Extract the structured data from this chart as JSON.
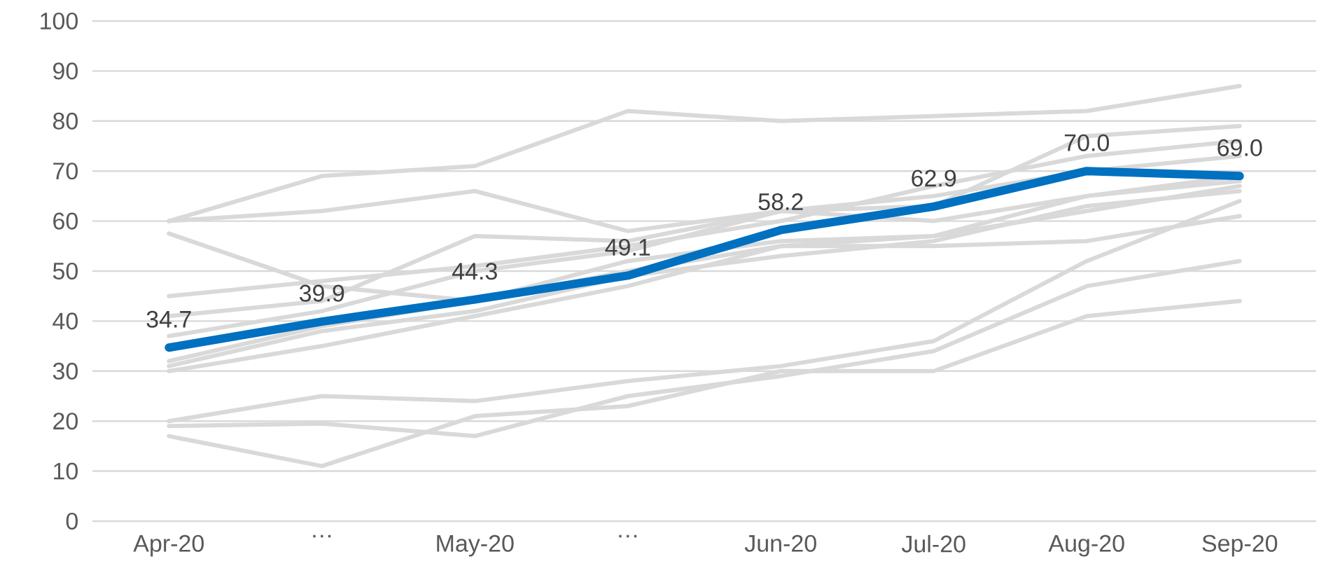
{
  "chart_data": {
    "type": "line",
    "categories": [
      "Apr-20",
      "…",
      "May-20",
      "…",
      "Jun-20",
      "Jul-20",
      "Aug-20",
      "Sep-20"
    ],
    "ylim": [
      0,
      100
    ],
    "yticks": [
      0,
      10,
      20,
      30,
      40,
      50,
      60,
      70,
      80,
      90,
      100
    ],
    "grid": "y",
    "marker": "none",
    "line_style": "solid",
    "series": [
      {
        "color": "#d9d9d9",
        "values": [
          60,
          69,
          71,
          82,
          80,
          81,
          82,
          87
        ]
      },
      {
        "color": "#d9d9d9",
        "values": [
          60,
          62,
          66,
          58,
          62,
          63,
          77,
          79
        ]
      },
      {
        "color": "#d9d9d9",
        "values": [
          57.5,
          47,
          44,
          50,
          55,
          57,
          62,
          67
        ]
      },
      {
        "color": "#d9d9d9",
        "values": [
          45,
          48,
          51,
          55,
          60,
          67,
          73,
          76
        ]
      },
      {
        "color": "#d9d9d9",
        "values": [
          41,
          44,
          57,
          56,
          62,
          65,
          70,
          73
        ]
      },
      {
        "color": "#d9d9d9",
        "values": [
          37,
          42,
          50,
          54,
          62,
          60,
          65,
          69
        ]
      },
      {
        "color": "#d9d9d9",
        "values": [
          32,
          39,
          44,
          52,
          56,
          57,
          65,
          68
        ]
      },
      {
        "color": "#d9d9d9",
        "values": [
          31,
          38,
          42,
          49,
          53,
          56,
          63,
          66
        ]
      },
      {
        "color": "#d9d9d9",
        "values": [
          30,
          35,
          41,
          47,
          55,
          55,
          56,
          61
        ]
      },
      {
        "color": "#d9d9d9",
        "values": [
          20,
          25,
          24,
          28,
          31,
          36,
          52,
          64
        ]
      },
      {
        "color": "#d9d9d9",
        "values": [
          19,
          19.5,
          17,
          25,
          29,
          34,
          47,
          52
        ]
      },
      {
        "color": "#d9d9d9",
        "values": [
          17,
          11,
          21,
          23,
          30,
          30,
          41,
          44
        ]
      },
      {
        "color": "#0070c0",
        "values": [
          34.7,
          39.9,
          44.3,
          49.1,
          58.2,
          62.9,
          70.0,
          69.0
        ],
        "value_labels": [
          "34.7",
          "39.9",
          "44.3",
          "49.1",
          "58.2",
          "62.9",
          "70.0",
          "69.0"
        ]
      }
    ]
  }
}
